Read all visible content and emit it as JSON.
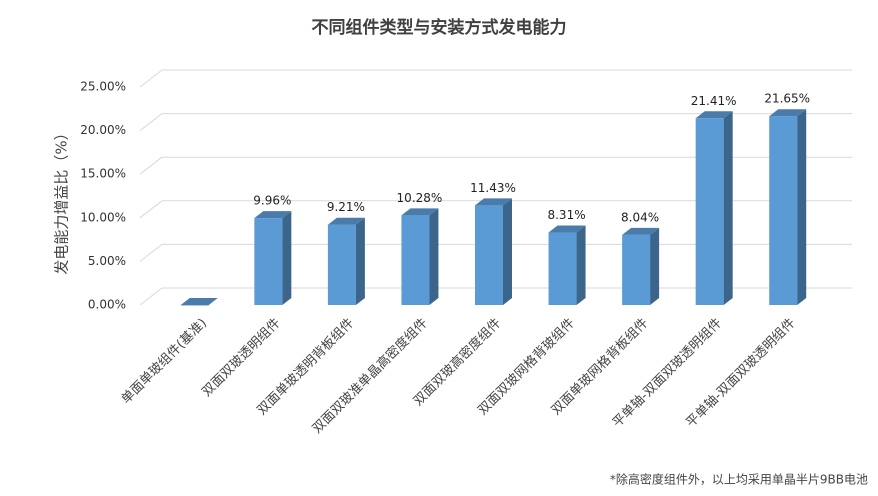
{
  "chart_data": {
    "type": "bar",
    "title": "不同组件类型与安装方式发电能力",
    "y_label": "发电能力增益比（%）",
    "note": "*除高密度组件外，以上均采用单晶半片9BB电池",
    "categories": [
      "单面单玻组件(基准)",
      "双面双玻透明组件",
      "双面单玻透明背板组件",
      "双面双玻准单晶高密度组件",
      "双面双玻高密度组件",
      "双面双玻网格背玻组件",
      "双面单玻网格背板组件",
      "平单轴-双面双玻透明组件",
      "平单轴-双面双玻透明组件"
    ],
    "values": [
      0,
      9.96,
      9.21,
      10.28,
      11.43,
      8.31,
      8.04,
      21.41,
      21.65
    ],
    "value_labels": [
      null,
      "9.96%",
      "9.21%",
      "10.28%",
      "11.43%",
      "8.31%",
      "8.04%",
      "21.41%",
      "21.65%"
    ],
    "color": "#5b9bd5",
    "ylim": [
      0,
      25
    ],
    "yticks": [
      {
        "value": 0,
        "label": "0.00%"
      },
      {
        "value": 5,
        "label": "5.00%"
      },
      {
        "value": 10,
        "label": "10.00%"
      },
      {
        "value": 15,
        "label": "15.00%"
      },
      {
        "value": 20,
        "label": "20.00%"
      },
      {
        "value": 25,
        "label": "25.00%"
      }
    ],
    "grid": true
  }
}
